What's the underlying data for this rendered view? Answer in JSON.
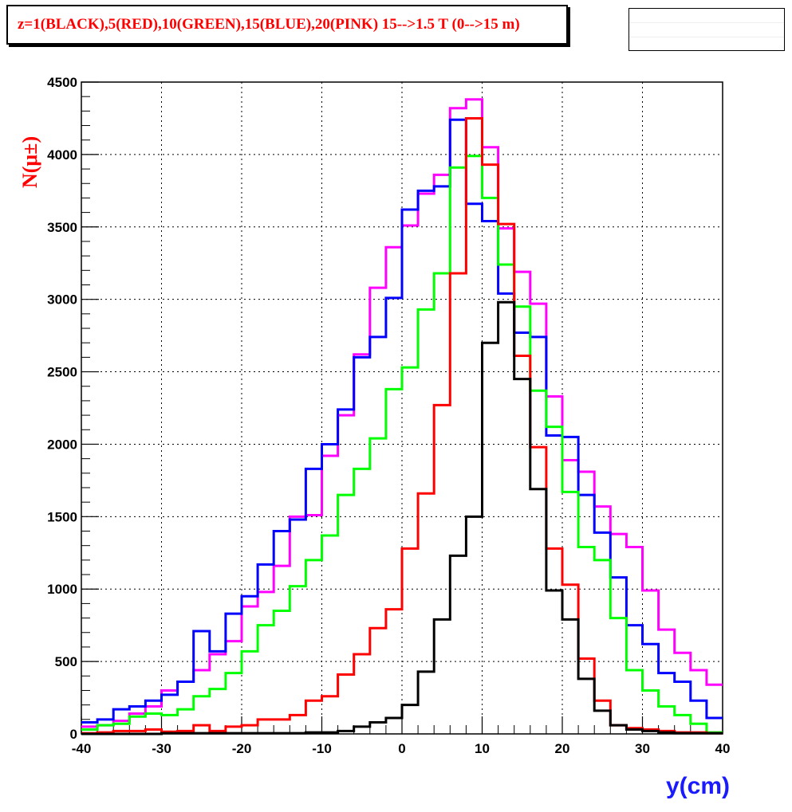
{
  "header": {
    "title": "z=1(BLACK),5(RED),10(GREEN),15(BLUE),20(PINK)  15-->1.5 T (0-->15 m)"
  },
  "chart_data": {
    "type": "histogram",
    "xlabel": "y(cm)",
    "ylabel": "N(μ±)",
    "xlim": [
      -40,
      40
    ],
    "ylim": [
      0,
      4500
    ],
    "xticks": [
      -40,
      -30,
      -20,
      -10,
      0,
      10,
      20,
      30,
      40
    ],
    "yticks": [
      0,
      500,
      1000,
      1500,
      2000,
      2500,
      3000,
      3500,
      4000,
      4500
    ],
    "grid": true,
    "bin_width": 2,
    "bin_edges_start": -40,
    "series": [
      {
        "color": "#000000",
        "values": [
          0,
          0,
          0,
          0,
          0,
          5,
          5,
          5,
          5,
          5,
          5,
          5,
          5,
          5,
          10,
          10,
          20,
          50,
          80,
          110,
          200,
          430,
          790,
          1230,
          1500,
          2700,
          2980,
          2450,
          1690,
          990,
          790,
          380,
          160,
          60,
          30,
          20,
          10,
          5,
          5,
          5
        ]
      },
      {
        "color": "#ff0000",
        "values": [
          5,
          10,
          20,
          20,
          30,
          15,
          20,
          60,
          20,
          50,
          60,
          100,
          100,
          130,
          230,
          260,
          410,
          550,
          730,
          860,
          1280,
          1660,
          2270,
          3180,
          4250,
          3930,
          3520,
          2610,
          1980,
          1280,
          1030,
          520,
          230,
          60,
          40,
          30,
          20,
          10,
          10,
          5
        ]
      },
      {
        "color": "#00ff00",
        "values": [
          30,
          60,
          70,
          120,
          140,
          130,
          170,
          260,
          310,
          420,
          570,
          750,
          850,
          1020,
          1200,
          1370,
          1650,
          1830,
          2040,
          2380,
          2530,
          2930,
          3180,
          3910,
          3990,
          3700,
          3240,
          2950,
          2370,
          2120,
          1670,
          1290,
          1200,
          800,
          440,
          300,
          190,
          130,
          70,
          10
        ]
      },
      {
        "color": "#0000ff",
        "values": [
          80,
          100,
          170,
          190,
          230,
          270,
          360,
          710,
          570,
          830,
          950,
          1170,
          1400,
          1480,
          1830,
          2000,
          2240,
          2600,
          2740,
          3010,
          3620,
          3750,
          3780,
          4240,
          3660,
          3540,
          3040,
          2770,
          2740,
          2060,
          2050,
          1650,
          1390,
          1080,
          750,
          620,
          420,
          360,
          230,
          110
        ]
      },
      {
        "color": "#ff00ff",
        "values": [
          50,
          60,
          90,
          140,
          190,
          300,
          360,
          440,
          550,
          640,
          880,
          980,
          1160,
          1500,
          1510,
          1920,
          2200,
          2620,
          3080,
          3360,
          3510,
          3730,
          3860,
          4320,
          4380,
          4050,
          3490,
          3190,
          2970,
          2330,
          1890,
          1810,
          1570,
          1380,
          1290,
          990,
          720,
          560,
          440,
          340
        ]
      }
    ]
  }
}
